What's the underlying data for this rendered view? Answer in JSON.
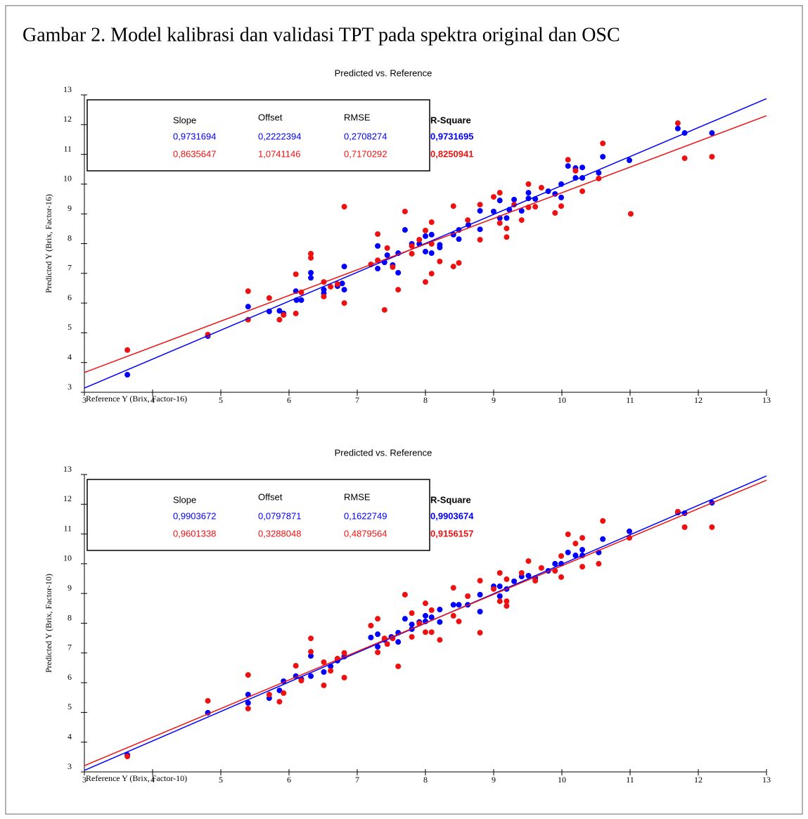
{
  "title": "Gambar 2. Model kalibrasi dan validasi TPT pada spektra original dan OSC",
  "chart_data": [
    {
      "type": "scatter",
      "title": "Predicted vs. Reference",
      "xlabel": "Reference Y (Brix, Factor-16)",
      "ylabel": "Predicted Y (Brix, Factor-16)",
      "xlim": [
        3,
        13
      ],
      "ylim": [
        3,
        13
      ],
      "xticks": [
        3,
        4,
        5,
        6,
        7,
        8,
        9,
        10,
        11,
        12,
        13
      ],
      "yticks": [
        3,
        4,
        5,
        6,
        7,
        8,
        9,
        10,
        11,
        12,
        13
      ],
      "stat_columns": [
        "Slope",
        "Offset",
        "RMSE",
        "R-Square"
      ],
      "series": [
        {
          "color": "#0000ff",
          "stats": [
            {
              "value": 0.9731694,
              "label": "0,9731694"
            },
            {
              "value": 0.2222394,
              "label": "0,2222394"
            },
            {
              "value": 0.2708274,
              "label": "0,2708274"
            },
            {
              "value": 0.9731695,
              "label": "0,9731695"
            }
          ],
          "x": [
            3.63,
            4.81,
            5.4,
            5.71,
            5.86,
            5.92,
            6.1,
            6.11,
            6.18,
            6.32,
            6.32,
            6.51,
            6.51,
            6.71,
            6.78,
            6.81,
            6.81,
            7.3,
            7.3,
            7.4,
            7.44,
            7.52,
            7.6,
            7.6,
            7.7,
            7.8,
            7.91,
            8.0,
            8.0,
            8.09,
            8.09,
            8.21,
            8.21,
            8.41,
            8.49,
            8.49,
            8.63,
            8.8,
            8.8,
            9.0,
            9.09,
            9.09,
            9.19,
            9.23,
            9.3,
            9.41,
            9.51,
            9.51,
            9.61,
            9.8,
            9.9,
            9.99,
            9.99,
            10.09,
            10.2,
            10.2,
            10.3,
            10.3,
            10.54,
            10.6,
            10.99,
            11.7,
            11.8,
            12.2
          ],
          "y": [
            3.59,
            4.89,
            5.88,
            5.72,
            5.74,
            5.65,
            6.4,
            6.1,
            6.1,
            7.02,
            6.85,
            6.45,
            6.33,
            6.57,
            6.66,
            7.23,
            6.45,
            7.92,
            7.16,
            7.37,
            7.61,
            7.28,
            7.68,
            7.02,
            8.46,
            7.99,
            7.99,
            8.25,
            7.73,
            8.3,
            7.68,
            7.87,
            7.96,
            8.3,
            8.15,
            8.46,
            8.63,
            8.48,
            9.1,
            9.08,
            8.86,
            9.45,
            8.86,
            9.14,
            9.48,
            9.1,
            9.71,
            9.52,
            9.5,
            9.76,
            9.67,
            9.55,
            10.0,
            10.61,
            10.21,
            10.54,
            10.56,
            10.21,
            10.38,
            10.92,
            10.8,
            11.87,
            11.72,
            11.72
          ]
        },
        {
          "color": "#ee1111",
          "stats": [
            {
              "value": 0.8635647,
              "label": "0,8635647"
            },
            {
              "value": 1.0741146,
              "label": "1,0741146"
            },
            {
              "value": 0.7170292,
              "label": "0,7170292"
            },
            {
              "value": 0.8250941,
              "label": "0,8250941"
            }
          ],
          "x": [
            3.63,
            4.81,
            5.4,
            5.4,
            5.71,
            5.86,
            5.92,
            6.1,
            6.1,
            6.18,
            6.32,
            6.32,
            6.51,
            6.51,
            6.61,
            6.71,
            6.81,
            6.81,
            7.2,
            7.3,
            7.3,
            7.4,
            7.44,
            7.52,
            7.6,
            7.7,
            7.8,
            7.8,
            7.91,
            8.0,
            8.0,
            8.09,
            8.09,
            8.09,
            8.21,
            8.41,
            8.41,
            8.49,
            8.62,
            8.8,
            8.8,
            9.0,
            9.09,
            9.09,
            9.19,
            9.19,
            9.3,
            9.41,
            9.51,
            9.51,
            9.61,
            9.7,
            9.9,
            9.99,
            10.09,
            10.2,
            10.3,
            10.54,
            10.6,
            11.01,
            11.7,
            11.8,
            12.2
          ],
          "y": [
            4.42,
            4.94,
            6.4,
            5.44,
            6.17,
            5.44,
            5.6,
            6.97,
            5.65,
            6.36,
            7.66,
            7.52,
            6.71,
            6.22,
            6.55,
            6.64,
            9.24,
            6.0,
            7.3,
            8.32,
            7.44,
            5.77,
            7.85,
            7.21,
            6.45,
            9.08,
            7.66,
            7.92,
            8.13,
            8.44,
            6.71,
            6.99,
            8.72,
            7.99,
            7.4,
            7.23,
            9.26,
            7.35,
            8.79,
            8.13,
            9.31,
            9.57,
            9.71,
            8.69,
            8.51,
            8.22,
            9.31,
            8.79,
            10.0,
            9.22,
            9.24,
            9.88,
            9.03,
            9.26,
            10.82,
            10.45,
            9.76,
            10.19,
            11.37,
            9.0,
            12.05,
            10.87,
            10.92
          ]
        }
      ]
    },
    {
      "type": "scatter",
      "title": "Predicted vs. Reference",
      "xlabel": "Reference Y (Brix, Factor-10)",
      "ylabel": "Predicted Y (Brix, Factor-10)",
      "xlim": [
        3,
        13
      ],
      "ylim": [
        3,
        13
      ],
      "xticks": [
        3,
        4,
        5,
        6,
        7,
        8,
        9,
        10,
        11,
        12,
        13
      ],
      "yticks": [
        3,
        4,
        5,
        6,
        7,
        8,
        9,
        10,
        11,
        12,
        13
      ],
      "stat_columns": [
        "Slope",
        "Offset",
        "RMSE",
        "R-Square"
      ],
      "series": [
        {
          "color": "#0000ff",
          "stats": [
            {
              "value": 0.9903672,
              "label": "0,9903672"
            },
            {
              "value": 0.0797871,
              "label": "0,0797871"
            },
            {
              "value": 0.1622749,
              "label": "0,1622749"
            },
            {
              "value": 0.9903674,
              "label": "0,9903674"
            }
          ],
          "x": [
            3.63,
            4.81,
            5.4,
            5.4,
            5.71,
            5.86,
            5.92,
            6.1,
            6.18,
            6.32,
            6.32,
            6.51,
            6.61,
            6.71,
            6.81,
            7.2,
            7.3,
            7.3,
            7.4,
            7.5,
            7.6,
            7.6,
            7.7,
            7.8,
            7.8,
            7.91,
            8.0,
            8.0,
            8.09,
            8.21,
            8.21,
            8.41,
            8.49,
            8.62,
            8.8,
            8.8,
            9.0,
            9.09,
            9.09,
            9.19,
            9.3,
            9.41,
            9.51,
            9.61,
            9.8,
            9.9,
            9.99,
            10.09,
            10.2,
            10.3,
            10.3,
            10.54,
            10.6,
            10.99,
            11.7,
            11.8,
            12.2
          ],
          "y": [
            3.57,
            4.99,
            5.32,
            5.6,
            5.48,
            5.74,
            6.05,
            6.22,
            6.12,
            6.22,
            6.9,
            6.36,
            6.55,
            6.74,
            6.88,
            7.52,
            7.63,
            7.21,
            7.44,
            7.54,
            7.37,
            7.68,
            8.15,
            7.8,
            7.96,
            8.04,
            8.25,
            8.06,
            8.2,
            8.46,
            8.04,
            8.62,
            8.62,
            8.62,
            8.39,
            8.96,
            9.24,
            8.91,
            9.24,
            9.15,
            9.41,
            9.57,
            9.6,
            9.52,
            9.76,
            10.0,
            10.0,
            10.38,
            10.28,
            10.47,
            10.28,
            10.38,
            10.83,
            11.09,
            11.72,
            11.7,
            12.05
          ]
        },
        {
          "color": "#ee1111",
          "stats": [
            {
              "value": 0.9601338,
              "label": "0,9601338"
            },
            {
              "value": 0.3288048,
              "label": "0,3288048"
            },
            {
              "value": 0.4879564,
              "label": "0,4879564"
            },
            {
              "value": 0.9156157,
              "label": "0,9156157"
            }
          ],
          "x": [
            3.63,
            4.81,
            5.4,
            5.4,
            5.71,
            5.86,
            5.92,
            6.1,
            6.18,
            6.32,
            6.32,
            6.51,
            6.51,
            6.61,
            6.71,
            6.81,
            6.81,
            7.2,
            7.3,
            7.3,
            7.4,
            7.44,
            7.52,
            7.6,
            7.7,
            7.8,
            7.8,
            7.91,
            8.0,
            8.0,
            8.09,
            8.09,
            8.21,
            8.41,
            8.41,
            8.49,
            8.62,
            8.8,
            8.8,
            9.0,
            9.09,
            9.09,
            9.19,
            9.19,
            9.19,
            9.41,
            9.51,
            9.61,
            9.7,
            9.9,
            9.99,
            9.99,
            10.09,
            10.2,
            10.3,
            10.3,
            10.54,
            10.6,
            10.99,
            11.7,
            11.8,
            12.2
          ],
          "y": [
            3.52,
            5.39,
            6.26,
            5.13,
            5.6,
            5.36,
            5.65,
            6.57,
            6.07,
            7.49,
            7.04,
            6.69,
            5.91,
            6.4,
            6.81,
            7.0,
            6.17,
            7.92,
            8.15,
            7.02,
            7.49,
            7.3,
            7.49,
            6.55,
            8.96,
            7.54,
            8.34,
            7.99,
            8.67,
            7.7,
            8.44,
            7.7,
            7.44,
            9.19,
            8.25,
            8.06,
            8.91,
            9.43,
            7.68,
            9.15,
            9.69,
            8.74,
            8.74,
            8.58,
            9.48,
            9.69,
            10.09,
            9.43,
            9.86,
            9.76,
            9.55,
            10.26,
            10.99,
            10.68,
            10.87,
            9.9,
            10.0,
            11.44,
            10.87,
            11.75,
            11.23,
            11.23
          ]
        }
      ]
    }
  ]
}
